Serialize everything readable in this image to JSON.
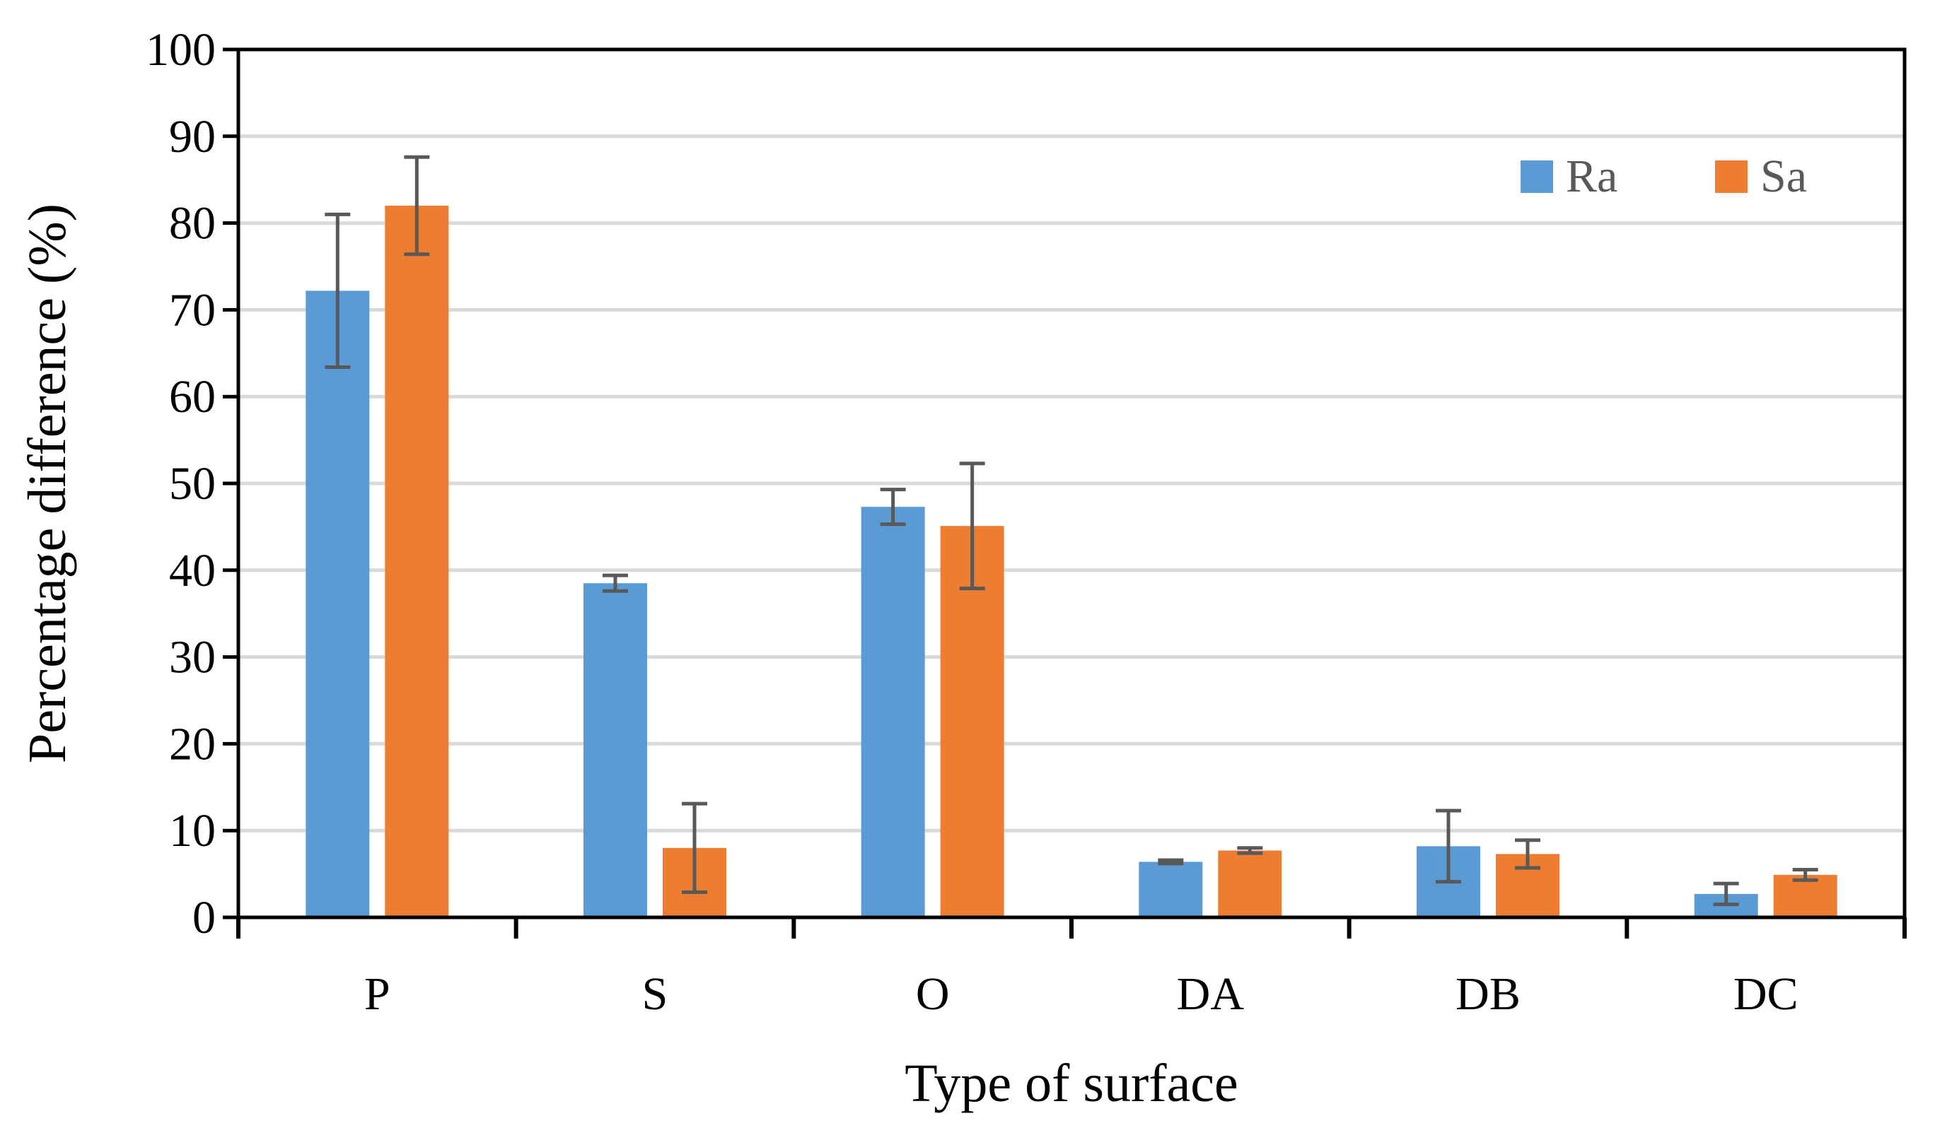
{
  "chart_data": {
    "type": "bar",
    "title": "",
    "xlabel": "Type of surface",
    "ylabel": "Percentage difference (%)",
    "ylim": [
      0,
      100
    ],
    "yticks": [
      0,
      10,
      20,
      30,
      40,
      50,
      60,
      70,
      80,
      90,
      100
    ],
    "grid": true,
    "legend_position": "top-right",
    "categories": [
      "P",
      "S",
      "O",
      "DA",
      "DB",
      "DC"
    ],
    "series": [
      {
        "name": "Ra",
        "color": "#5B9BD5",
        "values": [
          72.2,
          38.5,
          47.3,
          6.4,
          8.2,
          2.7
        ],
        "error": [
          8.8,
          0.9,
          2.0,
          0.2,
          4.1,
          1.2
        ]
      },
      {
        "name": "Sa",
        "color": "#ED7D31",
        "values": [
          82.0,
          8.0,
          45.1,
          7.7,
          7.3,
          4.9
        ],
        "error": [
          5.6,
          5.1,
          7.2,
          0.3,
          1.6,
          0.6
        ]
      }
    ],
    "errorbar_color": "#595959",
    "gridline_color": "#D9D9D9"
  }
}
